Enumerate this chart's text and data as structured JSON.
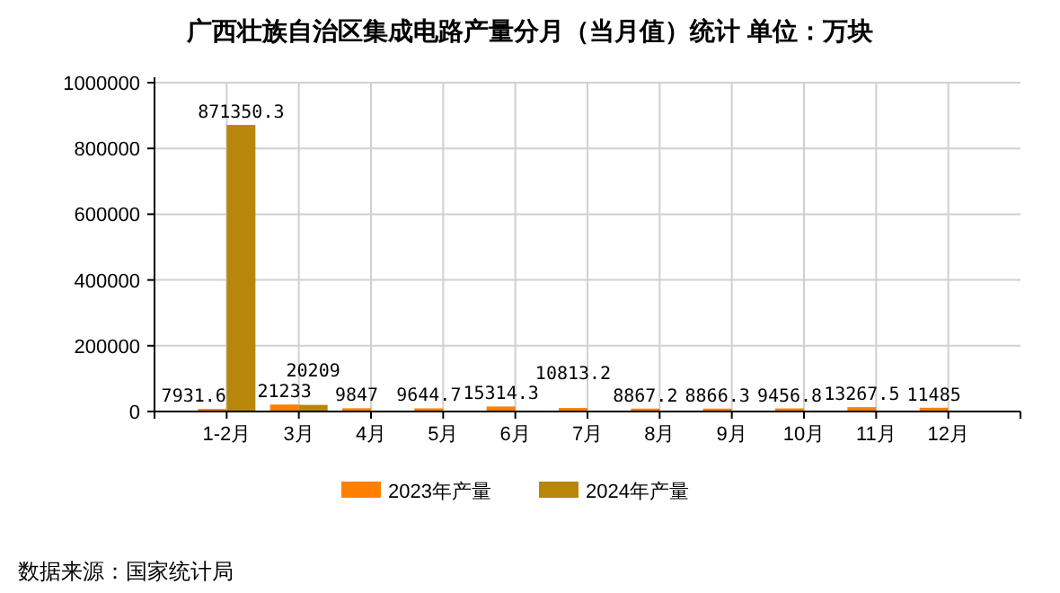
{
  "chart_data": {
    "type": "bar",
    "title": "广西壮族自治区集成电路产量分月（当月值）统计  单位：万块",
    "categories": [
      "1-2月",
      "3月",
      "4月",
      "5月",
      "6月",
      "7月",
      "8月",
      "9月",
      "10月",
      "11月",
      "12月"
    ],
    "series": [
      {
        "name": "2023年产量",
        "color": "#ff8000",
        "values": [
          7931.6,
          21233,
          9847,
          9644.7,
          15314.3,
          10813.2,
          8867.2,
          8866.3,
          9456.8,
          13267.5,
          11485
        ]
      },
      {
        "name": "2024年产量",
        "color": "#b8860b",
        "values": [
          871350.3,
          20209,
          null,
          null,
          null,
          null,
          null,
          null,
          null,
          null,
          null
        ]
      }
    ],
    "ylim": [
      0,
      1000000
    ],
    "yticks": [
      0,
      200000,
      400000,
      600000,
      800000,
      1000000
    ],
    "grid": true,
    "legend": "bottom",
    "data_labels": true,
    "annotations": [
      "数据来源：国家统计局"
    ]
  }
}
